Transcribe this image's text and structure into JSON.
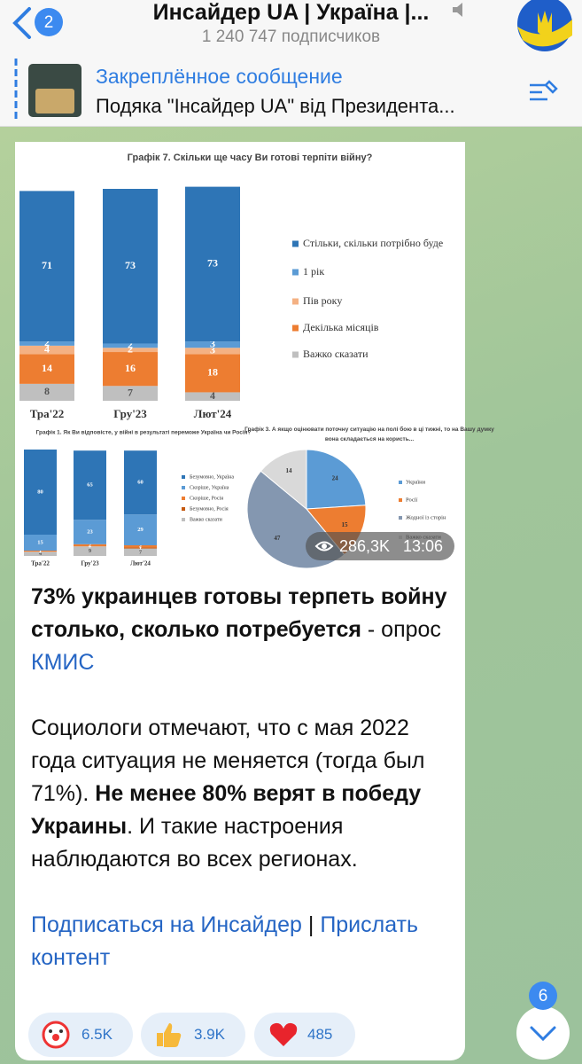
{
  "header": {
    "back_count": "2",
    "title": "Инсайдер UA | Україна |...",
    "subscribers": "1 240 747 подписчиков"
  },
  "pinned": {
    "label": "Закреплённое сообщение",
    "text": "Подяка \"Інсайдер UA\" від Президента..."
  },
  "message": {
    "image": {
      "charts": [
        {
          "type": "stacked-bar",
          "title": "Графік 7. Скільки ще часу Ви готові терпіти війну?",
          "categories": [
            "Тра'22",
            "Гру'23",
            "Лют'24"
          ],
          "series": [
            {
              "name": "Стільки, скільки потрібно буде",
              "color": "#2e75b6",
              "values": [
                71,
                73,
                73
              ]
            },
            {
              "name": "1 рік",
              "color": "#5b9bd5",
              "values": [
                2,
                2,
                3
              ]
            },
            {
              "name": "Пів року",
              "color": "#f4b183",
              "values": [
                4,
                2,
                3
              ]
            },
            {
              "name": "Декілька місяців",
              "color": "#ed7d31",
              "values": [
                14,
                16,
                18
              ]
            },
            {
              "name": "Важко сказати",
              "color": "#bfbfbf",
              "values": [
                8,
                7,
                4
              ]
            }
          ]
        },
        {
          "type": "stacked-bar",
          "title": "Графік 1. Як Ви відповісте, у війні в результаті переможе Україна чи Росія?",
          "categories": [
            "Тра'22",
            "Гру'23",
            "Лют'24"
          ],
          "series": [
            {
              "name": "Безумовно, Україна",
              "color": "#2e75b6",
              "values": [
                80,
                65,
                60
              ]
            },
            {
              "name": "Скоріше, Україна",
              "color": "#5b9bd5",
              "values": [
                15,
                23,
                29
              ]
            },
            {
              "name": "Скоріше, Росія",
              "color": "#ed7d31",
              "values": [
                1,
                2,
                2
              ]
            },
            {
              "name": "Безумовно, Росія",
              "color": "#c55a11",
              "values": [
                0,
                0,
                1
              ]
            },
            {
              "name": "Важко сказати",
              "color": "#bfbfbf",
              "values": [
                4,
                9,
                7
              ]
            }
          ]
        },
        {
          "type": "pie",
          "title": "Графік 3. А якщо оцінювати поточну ситуацію на полі бою в ці тижні, то на Вашу думку вона складається на користь...",
          "categories": [
            "України",
            "Росії",
            "Жодної із сторін",
            "Важко сказати"
          ],
          "values": [
            24,
            15,
            47,
            14
          ],
          "colors": [
            "#5b9bd5",
            "#ed7d31",
            "#8497b0",
            "#d9d9d9"
          ]
        }
      ],
      "views": "286,3K",
      "time": "13:06"
    },
    "paragraphs": [
      [
        {
          "text": "73% украинцев готовы терпеть войну столько, сколько потребуется",
          "style": "bold"
        },
        {
          "text": " - опрос ",
          "style": "plain"
        },
        {
          "text": "КМИС",
          "style": "link"
        }
      ],
      [
        {
          "text": "Социологи отмечают, что с мая 2022 года ситуация не меняется (тогда был 71%). ",
          "style": "plain"
        },
        {
          "text": "Не менее 80% верят в победу Украины",
          "style": "bold"
        },
        {
          "text": ". И такие настроения наблюдаются во всех регионах.",
          "style": "plain"
        }
      ],
      [
        {
          "text": "Подписаться на Инсайдер",
          "style": "link"
        },
        {
          "text": " | ",
          "style": "plain"
        },
        {
          "text": "Прислать контент",
          "style": "link"
        }
      ]
    ],
    "reactions": [
      {
        "count": "6.5K"
      },
      {
        "count": "3.9K"
      },
      {
        "count": 485
      }
    ]
  },
  "scroll_badge": "6"
}
